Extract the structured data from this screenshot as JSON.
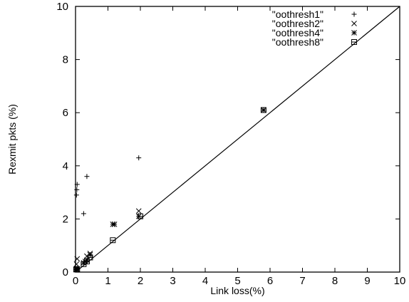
{
  "chart_data": {
    "type": "scatter",
    "title": "",
    "xlabel": "Link loss(%)",
    "ylabel": "Rexmit pkts (%)",
    "xlim": [
      0,
      10
    ],
    "ylim": [
      0,
      10
    ],
    "xticks": [
      "0",
      "1",
      "2",
      "3",
      "4",
      "5",
      "6",
      "7",
      "8",
      "9",
      "10"
    ],
    "yticks": [
      "0",
      "2",
      "4",
      "6",
      "8",
      "10"
    ],
    "grid": false,
    "legend_position": "top-right",
    "reference_line": {
      "from": [
        0,
        0
      ],
      "to": [
        10,
        10
      ]
    },
    "series": [
      {
        "name": "\"oothresh1\"",
        "marker": "plus",
        "x": [
          0.02,
          0.03,
          0.04,
          0.05,
          0.05,
          0.25,
          0.35,
          1.2,
          1.95
        ],
        "y": [
          0.1,
          2.9,
          3.1,
          3.3,
          0.15,
          2.2,
          3.6,
          1.8,
          4.3
        ]
      },
      {
        "name": "\"oothresh2\"",
        "marker": "cross",
        "x": [
          0.02,
          0.03,
          0.05,
          0.3,
          0.35,
          0.45,
          1.2,
          1.95,
          5.8
        ],
        "y": [
          0.1,
          0.3,
          0.5,
          0.4,
          0.6,
          0.7,
          1.8,
          2.3,
          6.1
        ]
      },
      {
        "name": "\"oothresh4\"",
        "marker": "star",
        "x": [
          0.02,
          0.05,
          0.25,
          0.35,
          0.45,
          1.15,
          1.95,
          5.8
        ],
        "y": [
          0.1,
          0.12,
          0.35,
          0.45,
          0.65,
          1.8,
          2.1,
          6.1
        ]
      },
      {
        "name": "\"oothresh8\"",
        "marker": "box",
        "x": [
          0.02,
          0.05,
          0.25,
          0.35,
          0.45,
          1.15,
          2.0,
          5.8
        ],
        "y": [
          0.1,
          0.1,
          0.3,
          0.4,
          0.55,
          1.2,
          2.1,
          6.1
        ]
      }
    ]
  }
}
